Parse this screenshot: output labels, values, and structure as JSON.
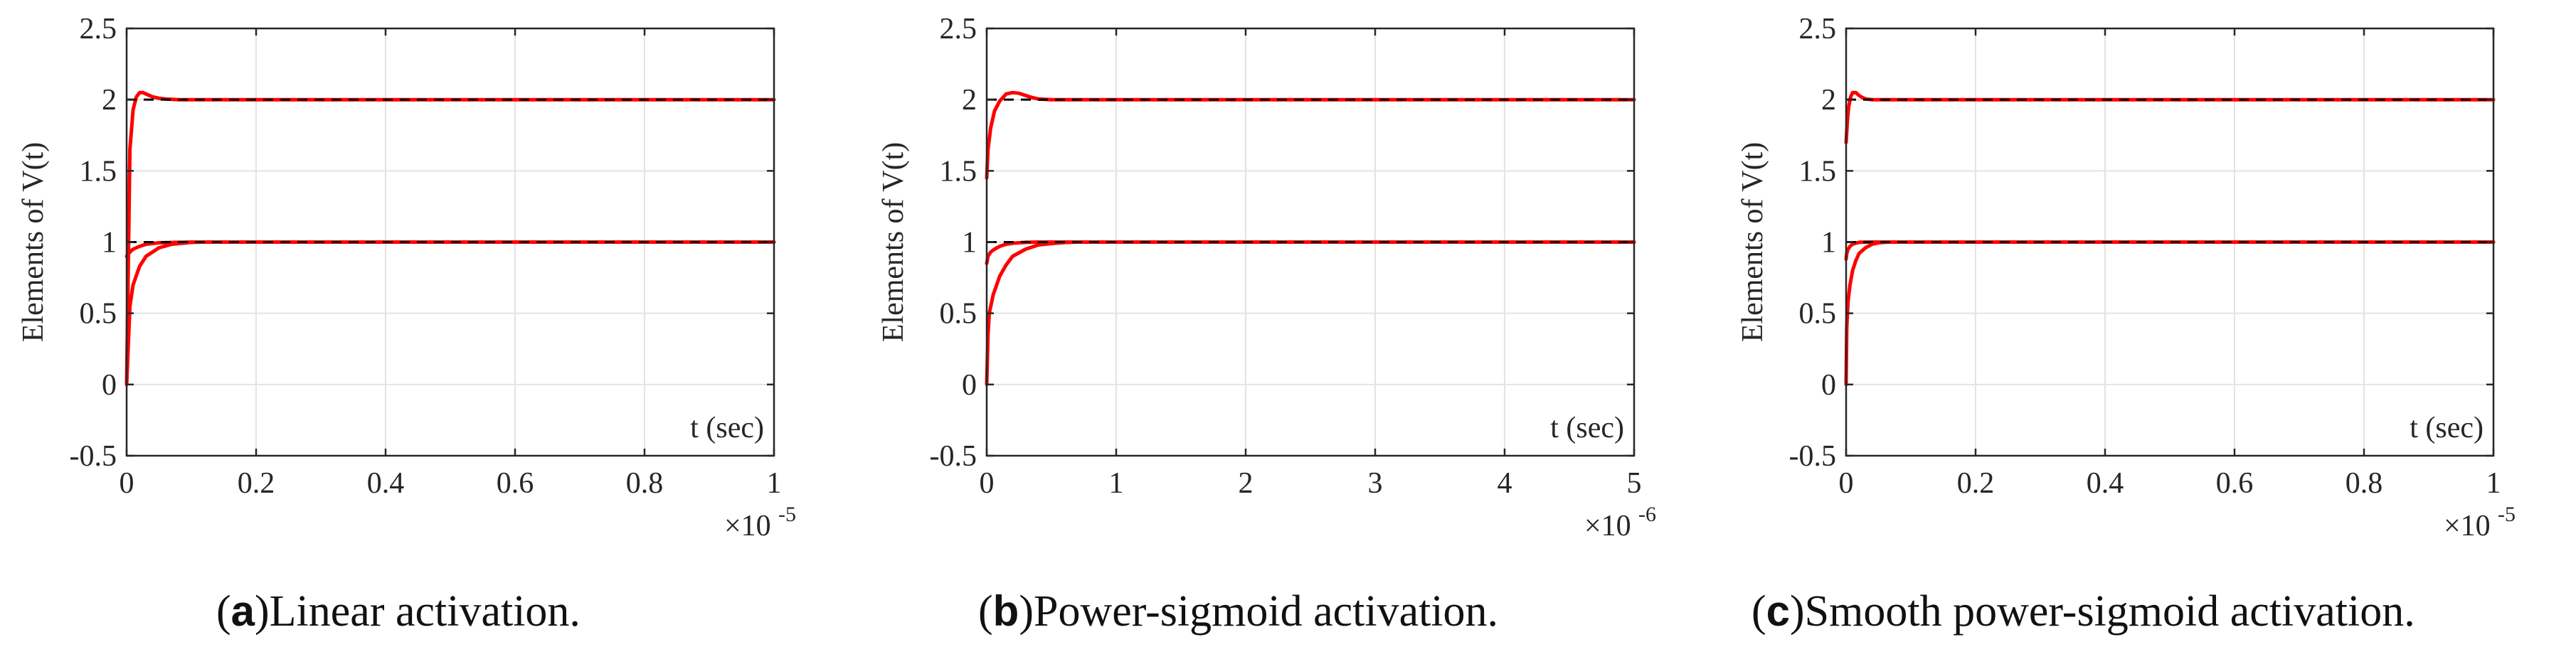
{
  "chart_data": [
    {
      "type": "line",
      "panel_letter": "a",
      "caption": "Linear activation.",
      "xlabel": "t (sec)",
      "ylabel": "Elements of V(t)",
      "xlim": [
        0,
        1e-05
      ],
      "ylim": [
        -0.5,
        2.5
      ],
      "x_ticks": [
        "0",
        "0.2",
        "0.4",
        "0.6",
        "0.8",
        "1"
      ],
      "x_tick_values": [
        0,
        2e-06,
        4e-06,
        6e-06,
        8e-06,
        1e-05
      ],
      "x_exponent": "×10",
      "x_exponent_power": "-5",
      "y_ticks": [
        "-0.5",
        "0",
        "0.5",
        "1",
        "1.5",
        "2",
        "2.5"
      ],
      "y_tick_values": [
        -0.5,
        0,
        0.5,
        1,
        1.5,
        2,
        2.5
      ],
      "grid": true,
      "reference_values": [
        1,
        2
      ],
      "series": [
        {
          "x": [
            0,
            5e-08,
            1e-07,
            1.5e-07,
            2e-07,
            2.5e-07,
            3e-07,
            4e-07,
            5e-07,
            6e-07,
            8e-07,
            1e-06,
            1.2e-06,
            1e-05
          ],
          "values": [
            0,
            1.65,
            1.93,
            2.02,
            2.05,
            2.05,
            2.04,
            2.02,
            2.01,
            2.005,
            2.0,
            2.0,
            2.0,
            2.0
          ]
        },
        {
          "x": [
            0,
            5e-08,
            1e-07,
            2e-07,
            3e-07,
            5e-07,
            7e-07,
            1e-06,
            1.2e-06,
            1e-05
          ],
          "values": [
            0,
            0.55,
            0.7,
            0.83,
            0.9,
            0.96,
            0.985,
            0.998,
            1.0,
            1.0
          ]
        },
        {
          "x": [
            0,
            5e-08,
            1e-07,
            2e-07,
            3e-07,
            5e-07,
            1e-06,
            1e-05
          ],
          "values": [
            0.9,
            0.93,
            0.95,
            0.97,
            0.985,
            0.995,
            1.0,
            1.0
          ]
        }
      ]
    },
    {
      "type": "line",
      "panel_letter": "b",
      "caption": "Power-sigmoid activation.",
      "xlabel": "t (sec)",
      "ylabel": "Elements of V(t)",
      "xlim": [
        0,
        5e-06
      ],
      "ylim": [
        -0.5,
        2.5
      ],
      "x_ticks": [
        "0",
        "1",
        "2",
        "3",
        "4",
        "5"
      ],
      "x_tick_values": [
        0,
        1e-06,
        2e-06,
        3e-06,
        4e-06,
        5e-06
      ],
      "x_exponent": "×10",
      "x_exponent_power": "-6",
      "y_ticks": [
        "-0.5",
        "0",
        "0.5",
        "1",
        "1.5",
        "2",
        "2.5"
      ],
      "y_tick_values": [
        -0.5,
        0,
        0.5,
        1,
        1.5,
        2,
        2.5
      ],
      "grid": true,
      "reference_values": [
        1,
        2
      ],
      "series": [
        {
          "x": [
            0,
            1e-08,
            3e-08,
            6e-08,
            1e-07,
            1.5e-07,
            2e-07,
            2.5e-07,
            3e-07,
            3.5e-07,
            4e-07,
            5e-07,
            6e-07,
            5e-06
          ],
          "values": [
            1.45,
            1.65,
            1.8,
            1.92,
            1.99,
            2.04,
            2.05,
            2.045,
            2.03,
            2.015,
            2.005,
            2.0,
            2.0,
            2.0
          ]
        },
        {
          "x": [
            0,
            1e-08,
            2e-08,
            5e-08,
            1e-07,
            1.5e-07,
            2e-07,
            3e-07,
            4e-07,
            5e-07,
            6e-07,
            7e-07,
            5e-06
          ],
          "values": [
            0,
            0.35,
            0.5,
            0.63,
            0.76,
            0.84,
            0.9,
            0.95,
            0.98,
            0.99,
            0.997,
            1.0,
            1.0
          ]
        },
        {
          "x": [
            0,
            1e-08,
            3e-08,
            6e-08,
            1e-07,
            1.5e-07,
            2e-07,
            3e-07,
            4e-07,
            5e-06
          ],
          "values": [
            0.85,
            0.9,
            0.93,
            0.95,
            0.97,
            0.985,
            0.992,
            0.998,
            1.0,
            1.0
          ]
        }
      ]
    },
    {
      "type": "line",
      "panel_letter": "c",
      "caption": "Smooth power-sigmoid activation.",
      "xlabel": "t (sec)",
      "ylabel": "Elements of V(t)",
      "xlim": [
        0,
        1e-05
      ],
      "ylim": [
        -0.5,
        2.5
      ],
      "x_ticks": [
        "0",
        "0.2",
        "0.4",
        "0.6",
        "0.8",
        "1"
      ],
      "x_tick_values": [
        0,
        2e-06,
        4e-06,
        6e-06,
        8e-06,
        1e-05
      ],
      "x_exponent": "×10",
      "x_exponent_power": "-5",
      "y_ticks": [
        "-0.5",
        "0",
        "0.5",
        "1",
        "1.5",
        "2",
        "2.5"
      ],
      "y_tick_values": [
        -0.5,
        0,
        0.5,
        1,
        1.5,
        2,
        2.5
      ],
      "grid": true,
      "reference_values": [
        1,
        2
      ],
      "series": [
        {
          "x": [
            0,
            2e-08,
            4e-08,
            7e-08,
            1e-07,
            1.5e-07,
            2e-07,
            2.5e-07,
            3e-07,
            4e-07,
            5e-07,
            1e-05
          ],
          "values": [
            1.7,
            1.85,
            1.95,
            2.02,
            2.05,
            2.05,
            2.03,
            2.015,
            2.005,
            2.0,
            2.0,
            2.0
          ]
        },
        {
          "x": [
            0,
            1e-08,
            3e-08,
            6e-08,
            1e-07,
            1.5e-07,
            2e-07,
            3e-07,
            4e-07,
            5e-07,
            6e-07,
            7e-07,
            1e-05
          ],
          "values": [
            0,
            0.4,
            0.58,
            0.7,
            0.8,
            0.87,
            0.92,
            0.96,
            0.985,
            0.995,
            0.999,
            1.0,
            1.0
          ]
        },
        {
          "x": [
            0,
            1e-08,
            3e-08,
            6e-08,
            1e-07,
            1.5e-07,
            2e-07,
            3e-07,
            1e-05
          ],
          "values": [
            0.88,
            0.92,
            0.95,
            0.97,
            0.985,
            0.993,
            0.998,
            1.0,
            1.0
          ]
        }
      ]
    }
  ],
  "colors": {
    "series": "#ff0000",
    "reference": "#000000",
    "grid": "#e3e3e3",
    "axes": "#262626"
  }
}
